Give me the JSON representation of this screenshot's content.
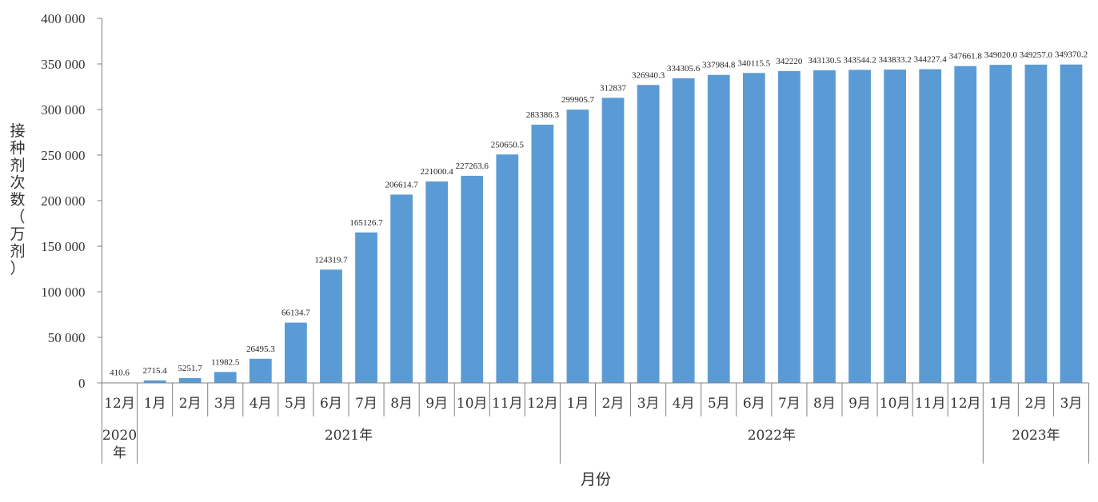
{
  "chart_data": {
    "type": "bar",
    "title": "",
    "xlabel": "月份",
    "ylabel": "接种剂次数（万剂）",
    "ylim": [
      0,
      400000
    ],
    "yticks": [
      0,
      50000,
      100000,
      150000,
      200000,
      250000,
      300000,
      350000,
      400000
    ],
    "ytick_labels": [
      "0",
      "50 000",
      "100 000",
      "150 000",
      "200 000",
      "250 000",
      "300 000",
      "350 000",
      "400 000"
    ],
    "grid": false,
    "legend": "none",
    "bar_color": "#5B9BD5",
    "categories": [
      "12月",
      "1月",
      "2月",
      "3月",
      "4月",
      "5月",
      "6月",
      "7月",
      "8月",
      "9月",
      "10月",
      "11月",
      "12月",
      "1月",
      "2月",
      "3月",
      "4月",
      "5月",
      "6月",
      "7月",
      "8月",
      "9月",
      "10月",
      "11月",
      "12月",
      "1月",
      "2月",
      "3月"
    ],
    "values": [
      410.6,
      2715.4,
      5251.7,
      11982.5,
      26495.3,
      66134.7,
      124319.7,
      165126.7,
      206614.7,
      221000.4,
      227263.6,
      250650.5,
      283386.3,
      299905.7,
      312837,
      326940.3,
      334305.6,
      337984.8,
      340115.5,
      342220,
      343130.5,
      343544.2,
      343833.2,
      344227.4,
      347661.8,
      349020.0,
      349257.0,
      349370.2
    ],
    "value_labels": [
      "410.6",
      "2715.4",
      "5251.7",
      "11982.5",
      "26495.3",
      "66134.7",
      "124319.7",
      "165126.7",
      "206614.7",
      "221000.4",
      "227263.6",
      "250650.5",
      "283386.3",
      "299905.7",
      "312837",
      "326940.3",
      "334305.6",
      "337984.8",
      "340115.5",
      "342220",
      "343130.5",
      "343544.2",
      "343833.2",
      "344227.4",
      "347661.8",
      "349020.0",
      "349257.0",
      "349370.2"
    ],
    "year_groups": [
      {
        "label": "2020年",
        "start": 0,
        "count": 1
      },
      {
        "label": "2021年",
        "start": 1,
        "count": 12
      },
      {
        "label": "2022年",
        "start": 13,
        "count": 12
      },
      {
        "label": "2023年",
        "start": 25,
        "count": 3
      }
    ]
  }
}
